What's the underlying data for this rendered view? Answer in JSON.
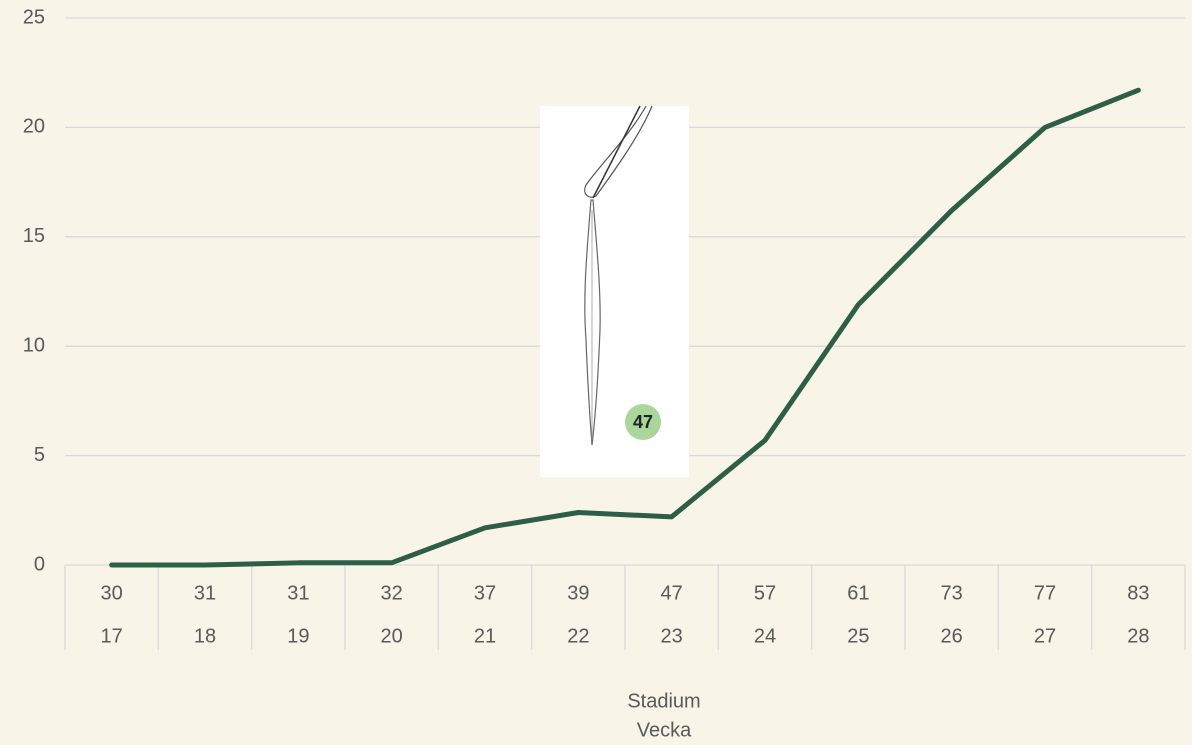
{
  "chart_data": {
    "type": "line",
    "categories": [
      "30",
      "31",
      "31",
      "32",
      "37",
      "39",
      "47",
      "57",
      "61",
      "73",
      "77",
      "83"
    ],
    "categories_vecka": [
      "17",
      "18",
      "19",
      "20",
      "21",
      "22",
      "23",
      "24",
      "25",
      "26",
      "27",
      "28"
    ],
    "xlabel": "Stadium",
    "xlabel2": "Vecka",
    "values": [
      0,
      0,
      0.1,
      0.1,
      1.7,
      2.4,
      2.2,
      5.7,
      11.9,
      16.2,
      20,
      21.7
    ],
    "color": "#2e5e45",
    "ylim": [
      0,
      25
    ],
    "yticks": [
      0,
      5,
      10,
      15,
      20,
      25
    ],
    "grid": true,
    "annotation": "47"
  }
}
